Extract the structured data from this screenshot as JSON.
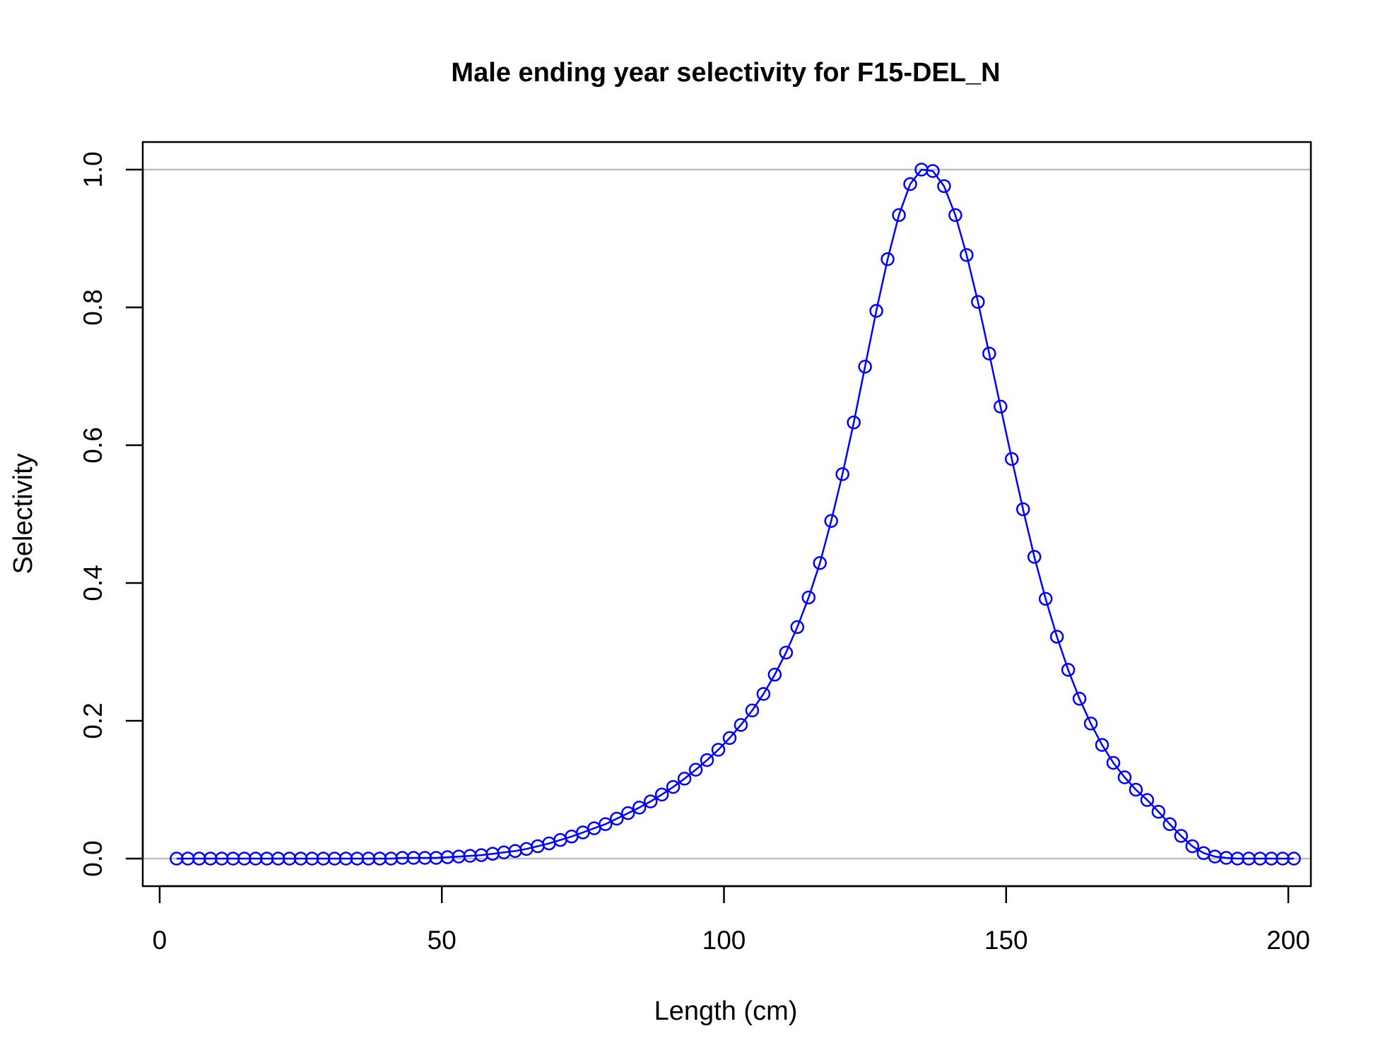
{
  "chart_data": {
    "type": "line",
    "title": "Male ending year selectivity for F15-DEL_N",
    "xlabel": "Length (cm)",
    "ylabel": "Selectivity",
    "xlim": [
      -3,
      204
    ],
    "ylim": [
      -0.04,
      1.04
    ],
    "x_ticks": [
      0,
      50,
      100,
      150,
      200
    ],
    "y_ticks": [
      0.0,
      0.2,
      0.4,
      0.6,
      0.8,
      1.0
    ],
    "x_tick_labels": [
      "0",
      "50",
      "100",
      "150",
      "200"
    ],
    "y_tick_labels": [
      "0.0",
      "0.2",
      "0.4",
      "0.6",
      "0.8",
      "1.0"
    ],
    "reference_lines_y": [
      0,
      1
    ],
    "grid": false,
    "legend": "none",
    "colors": {
      "series": "#0000ff",
      "reference": "#bebebe",
      "axis": "#000000"
    },
    "series": [
      {
        "x": [
          3,
          5,
          7,
          9,
          11,
          13,
          15,
          17,
          19,
          21,
          23,
          25,
          27,
          29,
          31,
          33,
          35,
          37,
          39,
          41,
          43,
          45,
          47,
          49,
          51,
          53,
          55,
          57,
          59,
          61,
          63,
          65,
          67,
          69,
          71,
          73,
          75,
          77,
          79,
          81,
          83,
          85,
          87,
          89,
          91,
          93,
          95,
          97,
          99,
          101,
          103,
          105,
          107,
          109,
          111,
          113,
          115,
          117,
          119,
          121,
          123,
          125,
          127,
          129,
          131,
          133,
          135,
          137,
          139,
          141,
          143,
          145,
          147,
          149,
          151,
          153,
          155,
          157,
          159,
          161,
          163,
          165,
          167,
          169,
          171,
          173,
          175,
          177,
          179,
          181,
          183,
          185,
          187,
          189,
          191,
          193,
          195,
          197,
          199,
          201
        ],
        "values": [
          0.0,
          0.0,
          0.0,
          0.0,
          0.0,
          0.0,
          0.0,
          0.0,
          0.0,
          0.0,
          0.0,
          0.0,
          0.0,
          0.0,
          0.0,
          0.0,
          0.0,
          0.0,
          0.0,
          0.0,
          0.001,
          0.001,
          0.001,
          0.001,
          0.002,
          0.003,
          0.004,
          0.005,
          0.007,
          0.009,
          0.011,
          0.014,
          0.018,
          0.022,
          0.027,
          0.032,
          0.038,
          0.044,
          0.05,
          0.058,
          0.066,
          0.074,
          0.083,
          0.093,
          0.104,
          0.116,
          0.129,
          0.143,
          0.158,
          0.175,
          0.194,
          0.215,
          0.239,
          0.267,
          0.299,
          0.336,
          0.379,
          0.429,
          0.49,
          0.558,
          0.633,
          0.714,
          0.795,
          0.87,
          0.934,
          0.979,
          1.0,
          0.998,
          0.976,
          0.934,
          0.876,
          0.808,
          0.733,
          0.656,
          0.58,
          0.507,
          0.438,
          0.377,
          0.322,
          0.274,
          0.232,
          0.196,
          0.165,
          0.139,
          0.118,
          0.1,
          0.085,
          0.068,
          0.05,
          0.033,
          0.018,
          0.008,
          0.003,
          0.001,
          0.0,
          0.0,
          0.0,
          0.0,
          0.0,
          0.0
        ]
      }
    ]
  }
}
